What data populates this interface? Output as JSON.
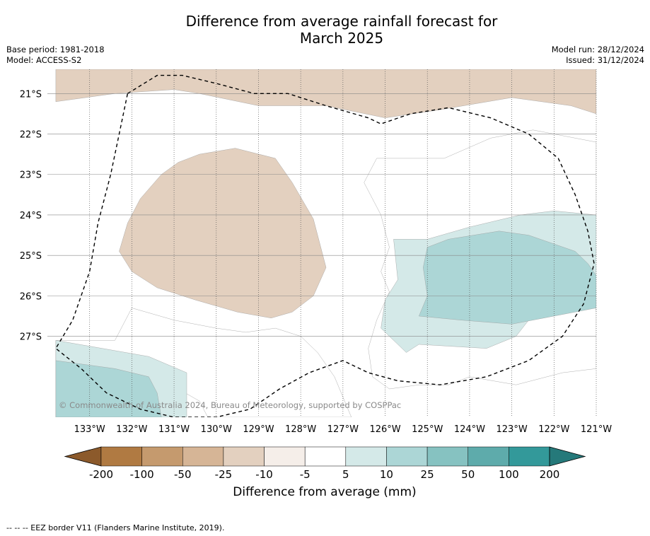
{
  "title_line1": "Difference from average rainfall forecast for",
  "title_line2": "March 2025",
  "meta_left": [
    "Base period: 1981-2018",
    "Model: ACCESS-S2"
  ],
  "meta_right": [
    "Model run: 28/12/2024",
    "Issued: 31/12/2024"
  ],
  "copyright": "© Commonwealth of Australia 2024, Bureau of Meteorology, supported by COSPPac",
  "colorbar_label": "Difference from average (mm)",
  "footnote": "--  --  -- EEZ border V11 (Flanders Marine Institute, 2019).",
  "chart_data": {
    "type": "heatmap",
    "xlabel": "",
    "ylabel": "",
    "xlim": [
      -134.0,
      -121.0
    ],
    "ylim": [
      -29.0,
      -20.4
    ],
    "x_ticks": [
      -133,
      -132,
      -131,
      -130,
      -129,
      -128,
      -127,
      -126,
      -125,
      -124,
      -123,
      -122,
      -121
    ],
    "x_tick_labels": [
      "133°W",
      "132°W",
      "131°W",
      "130°W",
      "129°W",
      "128°W",
      "127°W",
      "126°W",
      "125°W",
      "124°W",
      "123°W",
      "122°W",
      "121°W"
    ],
    "y_ticks": [
      -21,
      -22,
      -23,
      -24,
      -25,
      -26,
      -27
    ],
    "y_tick_labels": [
      "21°S",
      "22°S",
      "23°S",
      "24°S",
      "25°S",
      "26°S",
      "27°S"
    ],
    "grid": true,
    "colorbar": {
      "ticks": [
        "-200",
        "-100",
        "-50",
        "-25",
        "-10",
        "-5",
        "5",
        "10",
        "25",
        "50",
        "100",
        "200"
      ],
      "colors": [
        "#8c5a2b",
        "#b07a42",
        "#c59a6e",
        "#d6b596",
        "#e3d0bf",
        "#f5eee9",
        "#ffffff",
        "#d4e9e8",
        "#acd6d6",
        "#86c2c1",
        "#5eabab",
        "#33999a",
        "#25797a"
      ]
    },
    "regions": [
      {
        "category": "-10 to -5",
        "color": "#e3d0bf",
        "polygon": [
          [
            -133.8,
            -20.4
          ],
          [
            -121.0,
            -20.4
          ],
          [
            -121.0,
            -21.5
          ],
          [
            -121.6,
            -21.3
          ],
          [
            -123.0,
            -21.1
          ],
          [
            -124.7,
            -21.4
          ],
          [
            -126.0,
            -21.6
          ],
          [
            -127.4,
            -21.3
          ],
          [
            -129.0,
            -21.3
          ],
          [
            -130.4,
            -21.0
          ],
          [
            -131.0,
            -20.9
          ],
          [
            -132.4,
            -21.0
          ],
          [
            -133.8,
            -21.2
          ]
        ]
      },
      {
        "category": "-10 to -5",
        "color": "#e3d0bf",
        "polygon": [
          [
            -130.9,
            -22.7
          ],
          [
            -130.4,
            -22.5
          ],
          [
            -129.55,
            -22.35
          ],
          [
            -128.6,
            -22.6
          ],
          [
            -128.2,
            -23.2
          ],
          [
            -127.7,
            -24.1
          ],
          [
            -127.4,
            -25.3
          ],
          [
            -127.7,
            -26.0
          ],
          [
            -128.2,
            -26.4
          ],
          [
            -128.7,
            -26.55
          ],
          [
            -129.5,
            -26.4
          ],
          [
            -130.5,
            -26.1
          ],
          [
            -131.4,
            -25.8
          ],
          [
            -132.0,
            -25.4
          ],
          [
            -132.3,
            -24.9
          ],
          [
            -132.1,
            -24.2
          ],
          [
            -131.8,
            -23.6
          ],
          [
            -131.3,
            -23.0
          ]
        ]
      },
      {
        "category": "-5 to 5",
        "color": "#ffffff",
        "polygon": [
          [
            -126.2,
            -22.6
          ],
          [
            -124.6,
            -22.6
          ],
          [
            -123.5,
            -22.1
          ],
          [
            -122.5,
            -21.9
          ],
          [
            -121.0,
            -22.2
          ],
          [
            -121.0,
            -24.8
          ],
          [
            -121.2,
            -25.1
          ],
          [
            -121.0,
            -26.4
          ],
          [
            -121.0,
            -27.8
          ],
          [
            -121.8,
            -27.9
          ],
          [
            -122.9,
            -28.2
          ],
          [
            -124.0,
            -28.0
          ],
          [
            -124.5,
            -28.2
          ],
          [
            -125.2,
            -28.2
          ],
          [
            -125.9,
            -28.3
          ],
          [
            -126.3,
            -28.0
          ],
          [
            -126.4,
            -27.3
          ],
          [
            -126.2,
            -26.6
          ],
          [
            -125.9,
            -25.9
          ],
          [
            -126.1,
            -25.4
          ],
          [
            -125.9,
            -24.8
          ],
          [
            -126.1,
            -24.0
          ],
          [
            -126.5,
            -23.2
          ]
        ]
      },
      {
        "category": "-5 to 5",
        "color": "#ffffff",
        "polygon": [
          [
            -130.2,
            -29.0
          ],
          [
            -126.8,
            -29.0
          ],
          [
            -127.2,
            -28.0
          ],
          [
            -127.6,
            -27.4
          ],
          [
            -128.0,
            -27.0
          ],
          [
            -128.6,
            -26.8
          ],
          [
            -129.3,
            -26.9
          ],
          [
            -130.0,
            -26.8
          ],
          [
            -131.0,
            -26.6
          ],
          [
            -132.0,
            -26.3
          ],
          [
            -132.4,
            -27.1
          ],
          [
            -133.8,
            -27.1
          ],
          [
            -133.8,
            -27.6
          ],
          [
            -132.9,
            -27.8
          ],
          [
            -131.6,
            -27.9
          ],
          [
            -130.9,
            -28.3
          ],
          [
            -130.4,
            -28.6
          ]
        ]
      },
      {
        "category": "5 to 10",
        "color": "#d4e9e8",
        "polygon": [
          [
            -125.8,
            -24.6
          ],
          [
            -125.0,
            -24.6
          ],
          [
            -124.0,
            -24.3
          ],
          [
            -122.8,
            -24.0
          ],
          [
            -122.0,
            -23.9
          ],
          [
            -121.0,
            -24.0
          ],
          [
            -121.0,
            -26.1
          ],
          [
            -121.6,
            -26.2
          ],
          [
            -122.6,
            -26.6
          ],
          [
            -122.9,
            -27.0
          ],
          [
            -123.6,
            -27.3
          ],
          [
            -125.2,
            -27.2
          ],
          [
            -125.5,
            -27.4
          ],
          [
            -126.1,
            -26.8
          ],
          [
            -126.0,
            -26.1
          ],
          [
            -125.7,
            -25.6
          ]
        ]
      },
      {
        "category": "10 to 25",
        "color": "#acd6d6",
        "polygon": [
          [
            -125.0,
            -24.8
          ],
          [
            -124.5,
            -24.6
          ],
          [
            -123.3,
            -24.4
          ],
          [
            -122.6,
            -24.5
          ],
          [
            -121.5,
            -24.9
          ],
          [
            -121.2,
            -25.2
          ],
          [
            -121.0,
            -25.5
          ],
          [
            -121.0,
            -26.3
          ],
          [
            -122.0,
            -26.5
          ],
          [
            -123.0,
            -26.7
          ],
          [
            -124.2,
            -26.6
          ],
          [
            -125.2,
            -26.5
          ],
          [
            -125.0,
            -26.0
          ],
          [
            -125.1,
            -25.3
          ]
        ]
      },
      {
        "category": "5 to 10",
        "color": "#d4e9e8",
        "polygon": [
          [
            -133.8,
            -27.1
          ],
          [
            -132.7,
            -27.3
          ],
          [
            -131.6,
            -27.5
          ],
          [
            -130.7,
            -27.9
          ],
          [
            -130.7,
            -29.0
          ],
          [
            -133.8,
            -29.0
          ]
        ]
      },
      {
        "category": "10 to 25",
        "color": "#acd6d6",
        "polygon": [
          [
            -133.8,
            -27.6
          ],
          [
            -132.4,
            -27.8
          ],
          [
            -131.6,
            -28.0
          ],
          [
            -131.4,
            -28.4
          ],
          [
            -131.3,
            -29.0
          ],
          [
            -133.8,
            -29.0
          ]
        ]
      }
    ],
    "eez_border": [
      [
        -132.1,
        -21.0
      ],
      [
        -131.4,
        -20.55
      ],
      [
        -130.8,
        -20.55
      ],
      [
        -130.0,
        -20.75
      ],
      [
        -129.1,
        -21.0
      ],
      [
        -128.3,
        -21.0
      ],
      [
        -127.4,
        -21.3
      ],
      [
        -126.4,
        -21.6
      ],
      [
        -126.1,
        -21.75
      ],
      [
        -125.4,
        -21.5
      ],
      [
        -124.5,
        -21.35
      ],
      [
        -123.5,
        -21.6
      ],
      [
        -122.6,
        -22.0
      ],
      [
        -121.9,
        -22.6
      ],
      [
        -121.5,
        -23.5
      ],
      [
        -121.2,
        -24.4
      ],
      [
        -121.05,
        -25.2
      ],
      [
        -121.3,
        -26.2
      ],
      [
        -121.8,
        -27.0
      ],
      [
        -122.6,
        -27.6
      ],
      [
        -123.6,
        -28.0
      ],
      [
        -124.7,
        -28.2
      ],
      [
        -125.7,
        -28.1
      ],
      [
        -126.4,
        -27.9
      ],
      [
        -127.0,
        -27.6
      ],
      [
        -127.8,
        -27.9
      ],
      [
        -128.5,
        -28.3
      ],
      [
        -129.2,
        -28.8
      ],
      [
        -130.0,
        -29.0
      ],
      [
        -131.0,
        -29.0
      ],
      [
        -131.8,
        -28.8
      ],
      [
        -132.6,
        -28.4
      ],
      [
        -133.2,
        -27.8
      ],
      [
        -133.8,
        -27.3
      ],
      [
        -133.4,
        -26.6
      ],
      [
        -133.0,
        -25.4
      ],
      [
        -132.8,
        -24.2
      ],
      [
        -132.5,
        -23.0
      ],
      [
        -132.3,
        -22.0
      ],
      [
        -132.1,
        -21.0
      ]
    ]
  }
}
